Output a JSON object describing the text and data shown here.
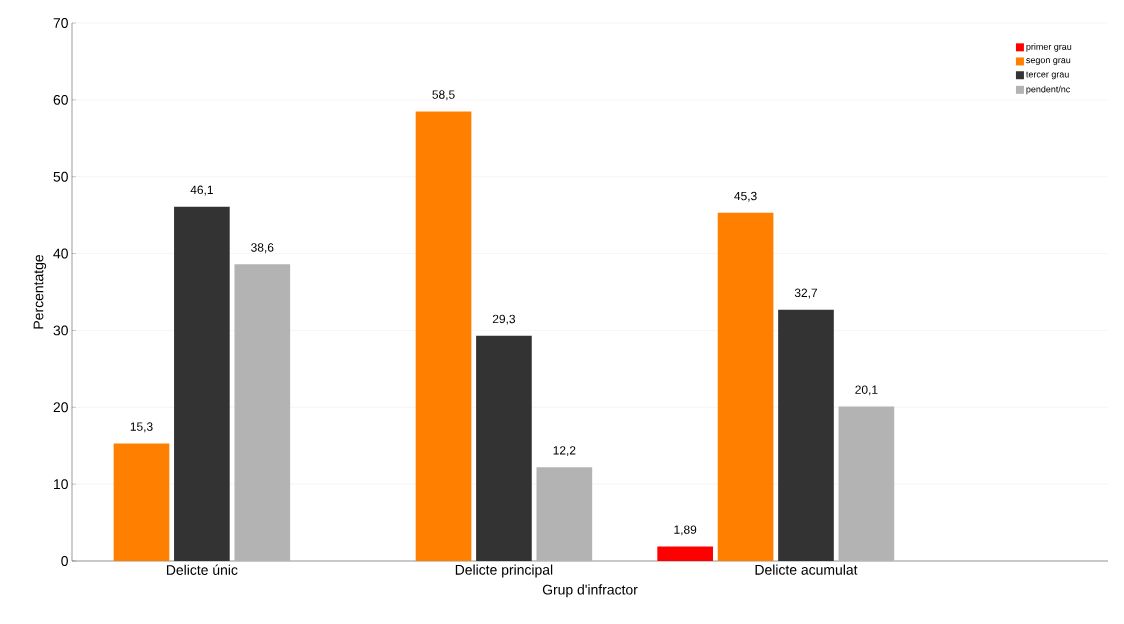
{
  "chart_data": {
    "type": "bar",
    "xlabel": "Grup d'infractor",
    "ylabel": "Percentatge",
    "categories": [
      "Delicte únic",
      "Delicte principal",
      "Delicte acumulat"
    ],
    "series": [
      {
        "name": "primer grau",
        "color": "#ff0000",
        "values": [
          null,
          null,
          1.89
        ],
        "value_labels": [
          null,
          null,
          "1,89"
        ]
      },
      {
        "name": "segon grau",
        "color": "#ff8000",
        "values": [
          15.3,
          58.5,
          45.3
        ],
        "value_labels": [
          "15,3",
          "58,5",
          "45,3"
        ]
      },
      {
        "name": "tercer grau",
        "color": "#333333",
        "values": [
          46.1,
          29.3,
          32.7
        ],
        "value_labels": [
          "46,1",
          "29,3",
          "32,7"
        ]
      },
      {
        "name": "pendent/nc",
        "color": "#b3b3b3",
        "values": [
          38.6,
          12.2,
          20.1
        ],
        "value_labels": [
          "38,6",
          "12,2",
          "20,1"
        ]
      }
    ],
    "ylim": [
      0,
      70
    ],
    "yticks": [
      0,
      10,
      20,
      30,
      40,
      50,
      60,
      70
    ],
    "grid": "y",
    "legend": "top right"
  }
}
